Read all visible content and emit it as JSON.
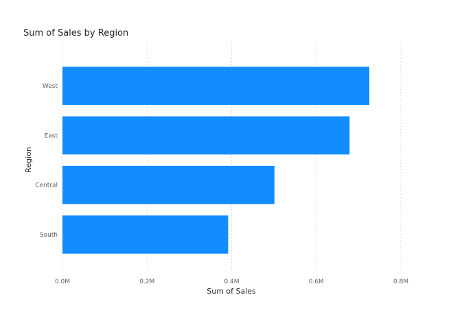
{
  "chart_data": {
    "type": "bar",
    "orientation": "horizontal",
    "title": "Sum of Sales by Region",
    "xlabel": "Sum of Sales",
    "ylabel": "Region",
    "categories": [
      "West",
      "East",
      "Central",
      "South"
    ],
    "values": [
      725458,
      678781,
      501240,
      391722
    ],
    "xlim": [
      0,
      800000
    ],
    "xticks": [
      0,
      200000,
      400000,
      600000,
      800000
    ],
    "xtick_labels": [
      "0.0M",
      "0.2M",
      "0.4M",
      "0.6M",
      "0.8M"
    ],
    "grid": true,
    "legend": "none",
    "colors": {
      "bar": "#118dff"
    }
  }
}
